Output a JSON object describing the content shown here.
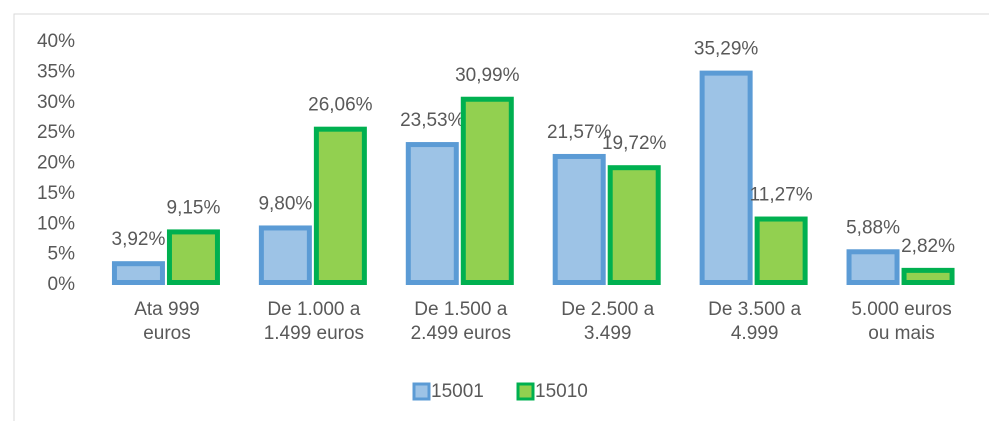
{
  "chart_data": {
    "type": "bar",
    "categories": [
      "Ata 999\neuros",
      "De 1.000 a\n1.499 euros",
      "De 1.500 a\n2.499 euros",
      "De 2.500 a\n3.499",
      "De 3.500 a\n4.999",
      "5.000 euros\nou mais"
    ],
    "series": [
      {
        "name": "15001",
        "color": "#9dc3e6",
        "edge": "#5b9bd5",
        "values": [
          3.92,
          9.8,
          23.53,
          21.57,
          35.29,
          5.88
        ],
        "value_labels": [
          "3,92%",
          "9,80%",
          "23,53%",
          "21,57%",
          "35,29%",
          "5,88%"
        ]
      },
      {
        "name": "15010",
        "color": "#92d050",
        "edge": "#00b050",
        "values": [
          9.15,
          26.06,
          30.99,
          19.72,
          11.27,
          2.82
        ],
        "value_labels": [
          "9,15%",
          "26,06%",
          "30,99%",
          "19,72%",
          "11,27%",
          "2,82%"
        ]
      }
    ],
    "ylim": [
      0,
      40
    ],
    "yticks": [
      {
        "value": 0,
        "label": "0%"
      },
      {
        "value": 5,
        "label": "5%"
      },
      {
        "value": 10,
        "label": "10%"
      },
      {
        "value": 15,
        "label": "15%"
      },
      {
        "value": 20,
        "label": "20%"
      },
      {
        "value": 25,
        "label": "25%"
      },
      {
        "value": 30,
        "label": "30%"
      },
      {
        "value": 35,
        "label": "35%"
      },
      {
        "value": 40,
        "label": "40%"
      }
    ],
    "legend": "bottom"
  }
}
